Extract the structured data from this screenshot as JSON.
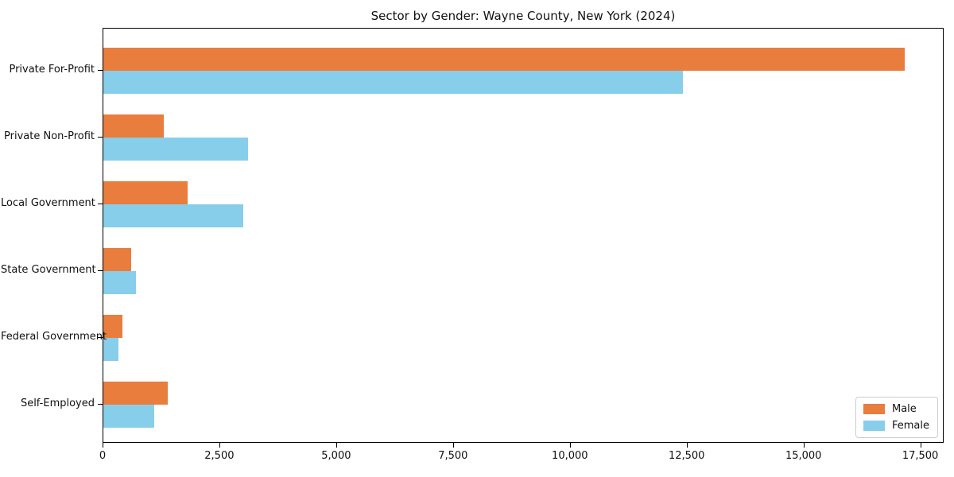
{
  "chart_data": {
    "type": "bar",
    "orientation": "horizontal",
    "title": "Sector by Gender: Wayne County, New York (2024)",
    "categories": [
      "Private For-Profit",
      "Private Non-Profit",
      "Local Government",
      "State Government",
      "Federal Government",
      "Self-Employed"
    ],
    "series": [
      {
        "name": "Male",
        "color": "#e87d3e",
        "values": [
          17150,
          1300,
          1800,
          600,
          400,
          1380
        ]
      },
      {
        "name": "Female",
        "color": "#87ceeb",
        "values": [
          12400,
          3100,
          3000,
          700,
          330,
          1080
        ]
      }
    ],
    "xlim": [
      0,
      18000
    ],
    "xticks": [
      0,
      2500,
      5000,
      7500,
      10000,
      12500,
      15000,
      17500
    ],
    "xtick_labels": [
      "0",
      "2,500",
      "5,000",
      "7,500",
      "10,000",
      "12,500",
      "15,000",
      "17,500"
    ],
    "xlabel": "",
    "ylabel": "",
    "grid": false,
    "legend": {
      "position": "lower right",
      "entries": [
        "Male",
        "Female"
      ]
    }
  }
}
